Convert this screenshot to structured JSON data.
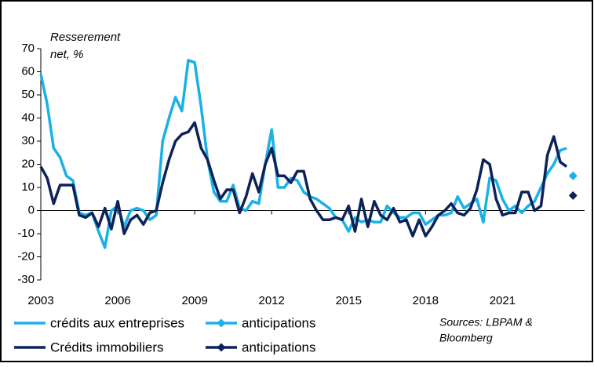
{
  "chart_data": {
    "type": "line",
    "ylabel": [
      "Resserement",
      "net, %"
    ],
    "source": [
      "Sources: LBPAM &",
      "Bloomberg"
    ],
    "xlim": [
      2003,
      2024.2
    ],
    "xticks": [
      2003,
      2006,
      2009,
      2012,
      2015,
      2018,
      2021
    ],
    "ylim": [
      -30,
      70
    ],
    "yticks": [
      -30,
      -20,
      -10,
      0,
      10,
      20,
      30,
      40,
      50,
      60,
      70
    ],
    "x": [
      2003,
      2003.25,
      2003.5,
      2003.75,
      2004,
      2004.25,
      2004.5,
      2004.75,
      2005,
      2005.25,
      2005.5,
      2005.75,
      2006,
      2006.25,
      2006.5,
      2006.75,
      2007,
      2007.25,
      2007.5,
      2007.75,
      2008,
      2008.25,
      2008.5,
      2008.75,
      2009,
      2009.25,
      2009.5,
      2009.75,
      2010,
      2010.25,
      2010.5,
      2010.75,
      2011,
      2011.25,
      2011.5,
      2011.75,
      2012,
      2012.25,
      2012.5,
      2012.75,
      2013,
      2013.25,
      2013.5,
      2013.75,
      2014,
      2014.25,
      2014.5,
      2014.75,
      2015,
      2015.25,
      2015.5,
      2015.75,
      2016,
      2016.25,
      2016.5,
      2016.75,
      2017,
      2017.25,
      2017.5,
      2017.75,
      2018,
      2018.25,
      2018.5,
      2018.75,
      2019,
      2019.25,
      2019.5,
      2019.75,
      2020,
      2020.25,
      2020.5,
      2020.75,
      2021,
      2021.25,
      2021.5,
      2021.75,
      2022,
      2022.25,
      2022.5,
      2022.75,
      2023,
      2023.25,
      2023.5
    ],
    "series": [
      {
        "name": "crédits aux entreprises",
        "color": "#1ab0e8",
        "marker": "none",
        "values": [
          59,
          46,
          27,
          23,
          15,
          13,
          -1,
          -2,
          -1,
          -9,
          -16,
          0,
          2,
          -7,
          0,
          1,
          0,
          -4,
          -2,
          30,
          40,
          49,
          43,
          65,
          64,
          45,
          22,
          8,
          4,
          4,
          11,
          1,
          0,
          4,
          3,
          20,
          35,
          10,
          10,
          14,
          13,
          8,
          6,
          5,
          3,
          1,
          -3,
          -4,
          -9,
          -3,
          -5,
          -4,
          -5,
          -5,
          2,
          -1,
          -3,
          -3,
          -1,
          -1,
          -6,
          -4,
          -2,
          -2,
          -1,
          6,
          1,
          3,
          5,
          -5,
          14,
          13,
          5,
          0,
          2,
          -1,
          2,
          4,
          10,
          16,
          20,
          26,
          27
        ]
      },
      {
        "name": "anticipations",
        "color": "#1ab0e8",
        "marker": "diamond",
        "x": [
          2023.75
        ],
        "values": [
          15
        ]
      },
      {
        "name": "Crédits immobiliers",
        "color": "#0c2258",
        "marker": "none",
        "values": [
          19,
          14,
          3,
          11,
          11,
          11,
          -2,
          -3,
          -1,
          -7,
          1,
          -8,
          4,
          -10,
          -4,
          -2,
          -6,
          -1,
          0,
          12,
          22,
          30,
          33,
          34,
          38,
          27,
          22,
          13,
          5,
          9,
          9,
          -1,
          6,
          16,
          8,
          20,
          27,
          15,
          15,
          12,
          17,
          17,
          5,
          0,
          -4,
          -4,
          -3,
          -4,
          2,
          -9,
          5,
          -7,
          4,
          -2,
          -4,
          1,
          -5,
          -4,
          -11,
          -4,
          -11,
          -7,
          -2,
          0,
          3,
          -1,
          -2,
          1,
          9,
          22,
          20,
          5,
          -2,
          -1,
          -1,
          8,
          8,
          0,
          2,
          24,
          32,
          21,
          19
        ]
      },
      {
        "name": "anticipations",
        "color": "#0c2258",
        "marker": "diamond",
        "x": [
          2023.75
        ],
        "values": [
          6.5
        ]
      }
    ]
  }
}
